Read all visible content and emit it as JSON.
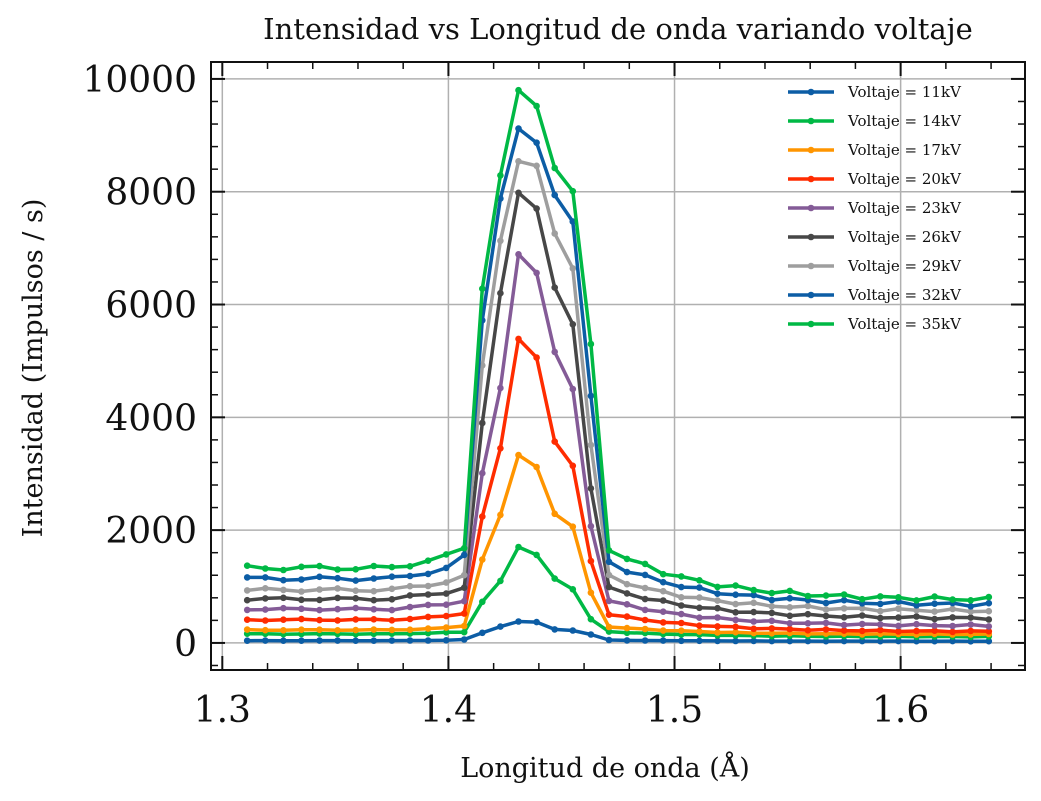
{
  "chart_data": {
    "type": "line",
    "title": "Intensidad vs Longitud de onda variando voltaje",
    "xlabel": "Longitud de onda (Å)",
    "ylabel": "Intensidad (Impulsos / s)",
    "xlim": [
      1.295,
      1.655
    ],
    "ylim": [
      -480,
      10300
    ],
    "xticks": [
      1.3,
      1.4,
      1.5,
      1.6
    ],
    "xtick_labels": [
      "1.3",
      "1.4",
      "1.5",
      "1.6"
    ],
    "yticks": [
      0,
      2000,
      4000,
      6000,
      8000,
      10000
    ],
    "ytick_labels": [
      "0",
      "2000",
      "4000",
      "6000",
      "8000",
      "10000"
    ],
    "grid": true,
    "legend_position": "top-right",
    "x_range": [
      1.311,
      1.639
    ],
    "n_points": 42,
    "series": [
      {
        "name": "Voltaje = 11kV",
        "color": "#0c5da5",
        "baseline": [
          40,
          30
        ],
        "peak": [
          180,
          290,
          380,
          370,
          240,
          220,
          150
        ],
        "pre": 60
      },
      {
        "name": "Voltaje = 14kV",
        "color": "#00b945",
        "baseline": [
          160,
          110
        ],
        "peak": [
          730,
          1100,
          1700,
          1560,
          1140,
          950,
          420
        ],
        "pre": 190
      },
      {
        "name": "Voltaje = 17kV",
        "color": "#ff9500",
        "baseline": [
          230,
          150
        ],
        "peak": [
          1480,
          2270,
          3330,
          3120,
          2290,
          2060,
          890
        ],
        "pre": 300
      },
      {
        "name": "Voltaje = 20kV",
        "color": "#ff2c00",
        "baseline": [
          410,
          200
        ],
        "peak": [
          2240,
          3450,
          5390,
          5060,
          3570,
          3140,
          1450
        ],
        "pre": 520
      },
      {
        "name": "Voltaje = 23kV",
        "color": "#845b97",
        "baseline": [
          600,
          300
        ],
        "peak": [
          3010,
          4520,
          6890,
          6560,
          5160,
          4500,
          2070
        ],
        "pre": 740
      },
      {
        "name": "Voltaje = 26kV",
        "color": "#474747",
        "baseline": [
          780,
          430
        ],
        "peak": [
          3900,
          6200,
          7980,
          7700,
          6300,
          5650,
          2740
        ],
        "pre": 980
      },
      {
        "name": "Voltaje = 29kV",
        "color": "#9e9e9e",
        "baseline": [
          940,
          560
        ],
        "peak": [
          4920,
          7130,
          8540,
          8460,
          7260,
          6640,
          3510
        ],
        "pre": 1200
      },
      {
        "name": "Voltaje = 32kV",
        "color": "#0c5da5",
        "baseline": [
          1140,
          670
        ],
        "peak": [
          5720,
          7880,
          9120,
          8870,
          7940,
          7470,
          4380
        ],
        "pre": 1560
      },
      {
        "name": "Voltaje = 35kV",
        "color": "#00b945",
        "baseline": [
          1330,
          760
        ],
        "peak": [
          6280,
          8290,
          9800,
          9520,
          8420,
          8010,
          5300
        ],
        "pre": 1680
      }
    ]
  }
}
